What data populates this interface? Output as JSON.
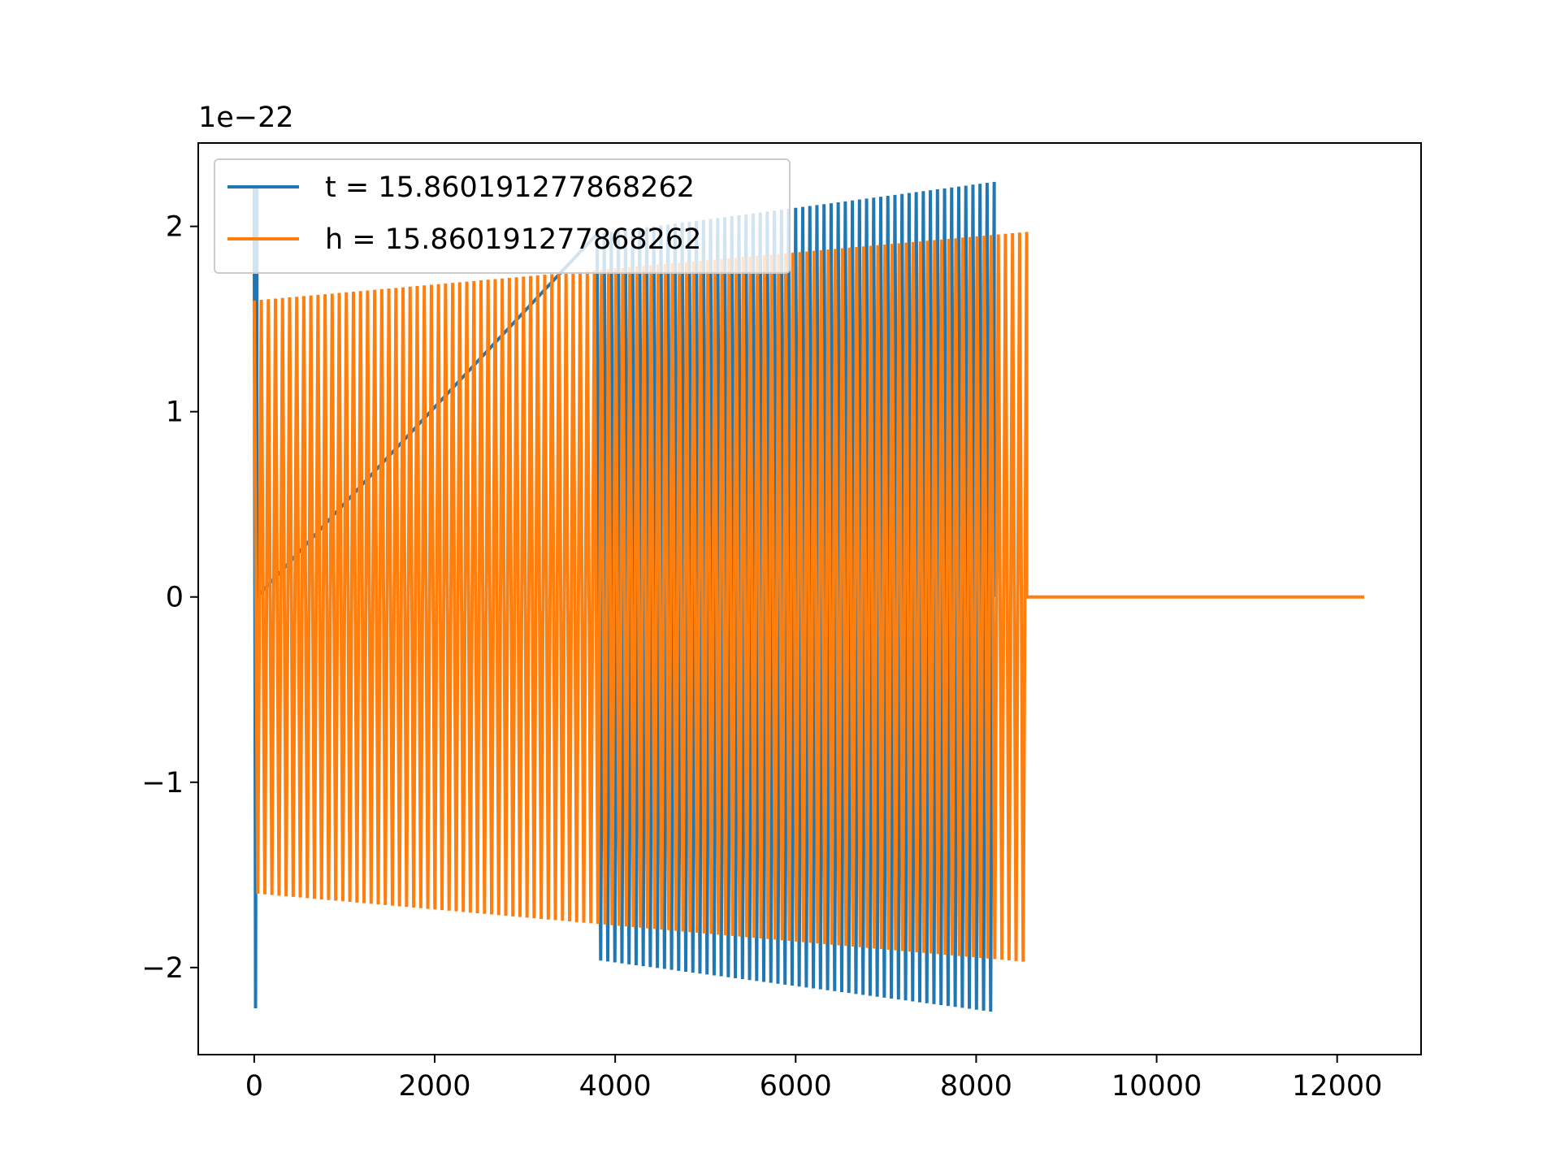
{
  "chart_data": {
    "type": "line",
    "title": "",
    "xlabel": "",
    "ylabel": "",
    "y_offset_text": "1e−22",
    "y_scale_exponent": -22,
    "xlim": [
      -620,
      12930
    ],
    "ylim": [
      -2.47,
      2.45
    ],
    "x_ticks": [
      0,
      2000,
      4000,
      6000,
      8000,
      10000,
      12000
    ],
    "x_tick_labels": [
      "0",
      "2000",
      "4000",
      "6000",
      "8000",
      "10000",
      "12000"
    ],
    "y_ticks": [
      -2,
      -1,
      0,
      1,
      2
    ],
    "y_tick_labels": [
      "−2",
      "−1",
      "0",
      "1",
      "2"
    ],
    "grid": false,
    "legend_position": "upper-left",
    "series": [
      {
        "name": "t = 15.860191277868262",
        "color": "#1f77b4",
        "segments": [
          {
            "x_start": 0,
            "x_end": 30,
            "cycles": 1,
            "amp_start": 2.22,
            "amp_end": 2.22
          },
          {
            "x_start": 3800,
            "x_end": 8200,
            "cycles": 56,
            "amp_start": 1.96,
            "amp_end": 2.24
          }
        ]
      },
      {
        "name": "h = 15.860191277868262",
        "color": "#ff7f0e",
        "segments": [
          {
            "x_start": 0,
            "x_end": 8560,
            "cycles": 109,
            "amp_start": 1.6,
            "amp_end": 1.97
          },
          {
            "x_start": 8560,
            "x_end": 12300,
            "cycles": 0,
            "amp_start": 0,
            "amp_end": 0
          }
        ]
      }
    ]
  }
}
